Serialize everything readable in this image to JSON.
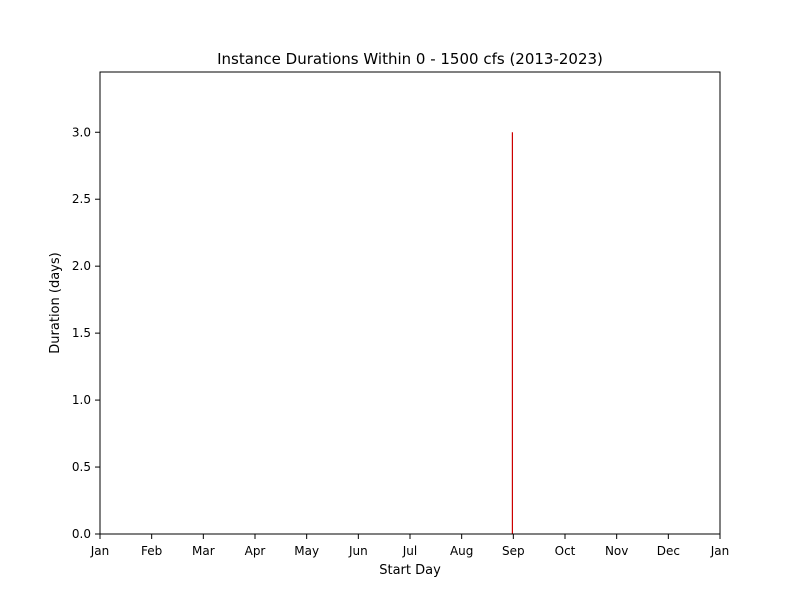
{
  "chart_data": {
    "type": "bar",
    "title": "Instance Durations Within 0 - 1500 cfs (2013-2023)",
    "xlabel": "Start Day",
    "ylabel": "Duration (days)",
    "x_tick_labels": [
      "Jan",
      "Feb",
      "Mar",
      "Apr",
      "May",
      "Jun",
      "Jul",
      "Aug",
      "Sep",
      "Oct",
      "Nov",
      "Dec",
      "Jan"
    ],
    "y_tick_labels": [
      "0.0",
      "0.5",
      "1.0",
      "1.5",
      "2.0",
      "2.5",
      "3.0"
    ],
    "y_ticks": [
      0,
      0.5,
      1.0,
      1.5,
      2.0,
      2.5,
      3.0
    ],
    "ylim": [
      0,
      3.45
    ],
    "xlim_months": [
      0,
      12
    ],
    "grid": false,
    "bar_color": "#cc0000",
    "series": [
      {
        "start_day": "Aug 31",
        "x": 7.98,
        "value": 3.0
      }
    ]
  }
}
